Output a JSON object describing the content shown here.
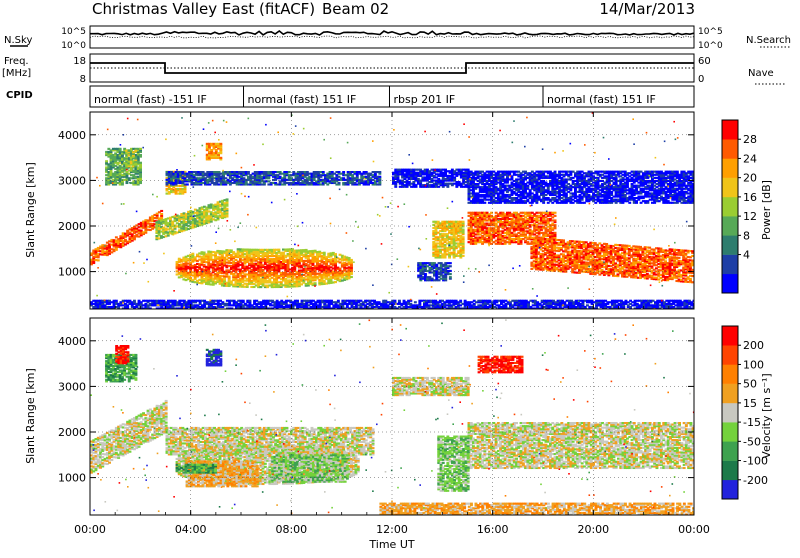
{
  "header": {
    "title": "Christmas Valley East (fitACF)",
    "beam": "Beam 02",
    "date": "14/Mar/2013"
  },
  "side_labels": {
    "nsky": "N.Sky",
    "nsearch": "N.Search",
    "freq": "Freq.",
    "freq_unit": "[MHz]",
    "nave": "Nave",
    "cpid": "CPID"
  },
  "noise_panel": {
    "left_ticks": [
      "10^5",
      "10^0"
    ],
    "right_ticks": [
      "10^5",
      "10^0"
    ]
  },
  "freq_panel": {
    "left_ticks": [
      "18",
      "8"
    ],
    "right_ticks": [
      "60",
      "0"
    ]
  },
  "cpid_segments": [
    {
      "label": "normal (fast) -151 IF",
      "start_hour": 0
    },
    {
      "label": "normal (fast) 151 IF",
      "start_hour": 6.1
    },
    {
      "label": "rbsp 201 IF",
      "start_hour": 11.9
    },
    {
      "label": "normal (fast) 151 IF",
      "start_hour": 18
    }
  ],
  "chart_data": [
    {
      "type": "heatmap",
      "panel": "power",
      "xlabel": "Time UT",
      "ylabel": "Slant Range [km]",
      "x_ticks": [
        "00:00",
        "04:00",
        "08:00",
        "12:00",
        "16:00",
        "20:00",
        "00:00"
      ],
      "x_range_hours": [
        0,
        24
      ],
      "y_ticks": [
        1000,
        2000,
        3000,
        4000
      ],
      "ylim": [
        180,
        4500
      ],
      "colorbar": {
        "label": "Power [dB]",
        "ticks": [
          "28",
          "24",
          "20",
          "16",
          "12",
          "8",
          "4"
        ],
        "colors": [
          "#0000ff",
          "#1e3fa6",
          "#2e7d6e",
          "#57a957",
          "#9acd32",
          "#f0c419",
          "#ff9f00",
          "#ff5a00",
          "#ff0000"
        ]
      },
      "regions": [
        {
          "t0": 0.0,
          "t1": 2.8,
          "r0": 1150,
          "r1": 1450,
          "level": 7,
          "shape": "rising_band",
          "rise": 900
        },
        {
          "t0": 0.6,
          "t1": 2.0,
          "r0": 2900,
          "r1": 3700,
          "level": 3
        },
        {
          "t0": 1.4,
          "t1": 1.8,
          "r0": 3300,
          "r1": 3650,
          "level": 4
        },
        {
          "t0": 3.0,
          "t1": 3.8,
          "r0": 2700,
          "r1": 3200,
          "level": 5
        },
        {
          "t0": 4.6,
          "t1": 5.2,
          "r0": 3450,
          "r1": 3800,
          "level": 6
        },
        {
          "t0": 2.6,
          "t1": 5.4,
          "r0": 1700,
          "r1": 2100,
          "level": 4,
          "shape": "rising_band",
          "rise": 500
        },
        {
          "t0": 3.4,
          "t1": 10.4,
          "r0": 650,
          "r1": 1500,
          "level": 8,
          "shape": "ellipse"
        },
        {
          "t0": 3.0,
          "t1": 11.5,
          "r0": 2900,
          "r1": 3200,
          "level": 1
        },
        {
          "t0": 12.0,
          "t1": 15.0,
          "r0": 2850,
          "r1": 3250,
          "level": 0
        },
        {
          "t0": 13.6,
          "t1": 14.8,
          "r0": 1300,
          "r1": 2100,
          "level": 5
        },
        {
          "t0": 13.0,
          "t1": 14.3,
          "r0": 800,
          "r1": 1200,
          "level": 1
        },
        {
          "t0": 15.0,
          "t1": 18.5,
          "r0": 1600,
          "r1": 2300,
          "level": 7
        },
        {
          "t0": 17.5,
          "t1": 24.0,
          "r0": 1050,
          "r1": 1750,
          "level": 7,
          "shape": "falling_band",
          "rise": 300
        },
        {
          "t0": 15.0,
          "t1": 24.0,
          "r0": 2500,
          "r1": 3200,
          "level": 0
        },
        {
          "t0": 0.0,
          "t1": 24.0,
          "r0": 180,
          "r1": 380,
          "level": 0
        }
      ]
    },
    {
      "type": "heatmap",
      "panel": "velocity",
      "xlabel": "Time UT",
      "ylabel": "Slant Range [km]",
      "x_ticks": [
        "00:00",
        "04:00",
        "08:00",
        "12:00",
        "16:00",
        "20:00",
        "00:00"
      ],
      "x_range_hours": [
        0,
        24
      ],
      "y_ticks": [
        1000,
        2000,
        3000,
        4000
      ],
      "ylim": [
        180,
        4500
      ],
      "colorbar": {
        "label": "Velocity [m s⁻¹]",
        "ticks": [
          "200",
          "100",
          "50",
          "15",
          "-15",
          "-50",
          "-100",
          "-200"
        ],
        "colors": [
          "#2222dd",
          "#1d7a4a",
          "#3ea24f",
          "#74d23c",
          "#c8c8c0",
          "#f0a020",
          "#ff8000",
          "#ff4400",
          "#ff0000"
        ]
      },
      "regions": [
        {
          "t0": 0.0,
          "t1": 3.0,
          "r0": 1100,
          "r1": 1800,
          "level": 4,
          "shape": "rising_band",
          "rise": 900
        },
        {
          "t0": 3.0,
          "t1": 11.2,
          "r0": 1500,
          "r1": 2100,
          "level": 4
        },
        {
          "t0": 3.4,
          "t1": 10.6,
          "r0": 850,
          "r1": 1700,
          "level": 4,
          "shape": "ellipse"
        },
        {
          "t0": 7.2,
          "t1": 10.2,
          "r0": 900,
          "r1": 1500,
          "level": 3
        },
        {
          "t0": 3.8,
          "t1": 6.6,
          "r0": 800,
          "r1": 1350,
          "level": 5
        },
        {
          "t0": 3.4,
          "t1": 5.0,
          "r0": 1100,
          "r1": 1300,
          "level": 2
        },
        {
          "t0": 0.6,
          "t1": 1.8,
          "r0": 3100,
          "r1": 3700,
          "level": 2
        },
        {
          "t0": 1.0,
          "t1": 1.5,
          "r0": 3500,
          "r1": 3900,
          "level": 8
        },
        {
          "t0": 4.6,
          "t1": 5.2,
          "r0": 3450,
          "r1": 3800,
          "level": 0
        },
        {
          "t0": 15.0,
          "t1": 24.0,
          "r0": 1200,
          "r1": 2200,
          "level": 4
        },
        {
          "t0": 15.4,
          "t1": 17.2,
          "r0": 3300,
          "r1": 3650,
          "level": 8
        },
        {
          "t0": 13.8,
          "t1": 15.0,
          "r0": 700,
          "r1": 1900,
          "level": 3
        },
        {
          "t0": 11.5,
          "t1": 24.0,
          "r0": 180,
          "r1": 420,
          "level": 5
        },
        {
          "t0": 12.0,
          "t1": 15.0,
          "r0": 2800,
          "r1": 3200,
          "level": 4
        }
      ]
    }
  ]
}
